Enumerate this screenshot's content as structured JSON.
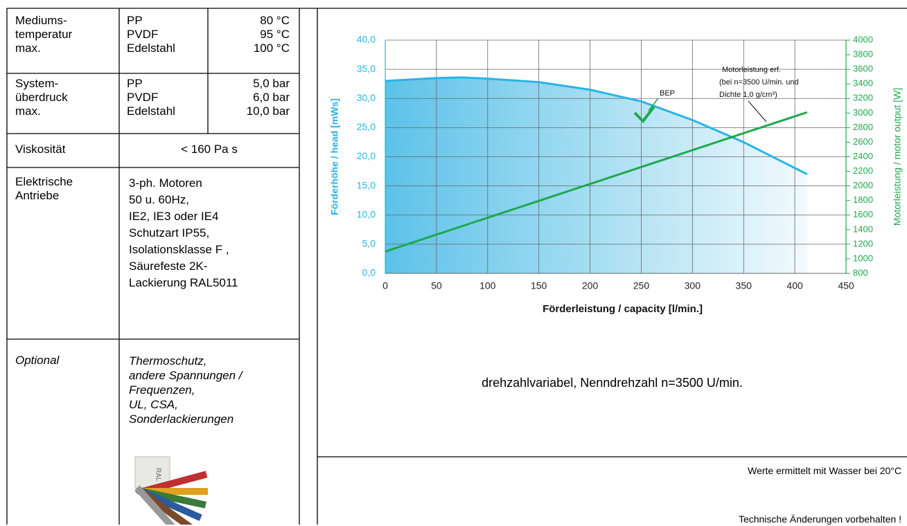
{
  "table": {
    "rows": [
      {
        "label": [
          "Mediums-",
          "temperatur",
          "max."
        ],
        "materials": [
          "PP",
          "PVDF",
          "Edelstahl"
        ],
        "values": [
          "80 °C",
          "95 °C",
          "100 °C"
        ]
      },
      {
        "label": [
          "System-",
          "überdruck",
          "max."
        ],
        "materials": [
          "PP",
          "PVDF",
          "Edelstahl"
        ],
        "values": [
          "5,0 bar",
          "6,0 bar",
          "10,0 bar"
        ]
      },
      {
        "label": [
          "Viskosität"
        ],
        "values": [
          "< 160 Pa s"
        ]
      },
      {
        "label": [
          "Elektrische",
          "Antriebe"
        ],
        "values": [
          "3-ph. Motoren",
          "50 u. 60Hz,",
          "IE2, IE3 oder IE4",
          "Schutzart IP55,",
          "Isolationsklasse F ,",
          "Säurefeste 2K-",
          "Lackierung RAL5011"
        ]
      },
      {
        "label": [
          "Optional"
        ],
        "values": [
          "Thermoschutz,",
          "andere Spannungen /",
          "Frequenzen,",
          "UL, CSA,",
          "Sonderlackierungen"
        ]
      }
    ]
  },
  "chart_data": {
    "type": "line",
    "xlabel": "Förderleistung / capacity  [l/min.]",
    "ylabel": "Förderhöhe / head  [mWs]",
    "y2label": "Motorleistung / motor output [W]",
    "x": [
      0,
      50,
      75,
      100,
      150,
      200,
      250,
      300,
      350,
      412
    ],
    "series": [
      {
        "name": "Förderhöhe / head",
        "color": "#29b4e5",
        "values": [
          33,
          33.5,
          33.6,
          33.4,
          32.8,
          31.5,
          29.5,
          26.3,
          22.5,
          17
        ]
      },
      {
        "name": "Motorleistung / motor output",
        "color": "#1ea84c",
        "axis": "y2",
        "values": [
          1100,
          1332,
          1448,
          1564,
          1795,
          2027,
          2259,
          2491,
          2723,
          3010
        ]
      }
    ],
    "xlim": [
      0,
      450
    ],
    "xticks": [
      0,
      50,
      100,
      150,
      200,
      250,
      300,
      350,
      400,
      450
    ],
    "ylim": [
      0,
      40
    ],
    "yticks": [
      {
        "value": 0,
        "label": "0,0"
      },
      {
        "value": 5,
        "label": "5,0"
      },
      {
        "value": 10,
        "label": "10,0"
      },
      {
        "value": 15,
        "label": "15,0"
      },
      {
        "value": 20,
        "label": "20,0"
      },
      {
        "value": 25,
        "label": "25,0"
      },
      {
        "value": 30,
        "label": "30,0"
      },
      {
        "value": 35,
        "label": "35,0"
      },
      {
        "value": 40,
        "label": "40,0"
      }
    ],
    "y2lim": [
      800,
      4000
    ],
    "y2ticks": [
      800,
      1000,
      1200,
      1400,
      1600,
      1800,
      2000,
      2200,
      2400,
      2600,
      2800,
      3000,
      3200,
      3400,
      3600,
      3800,
      4000
    ],
    "grid": true,
    "annotations": [
      "BEP",
      "Motorleistung erf.",
      "(bei n=3500 U/min. und",
      "Dichte 1,0 g/cm³)"
    ]
  },
  "notes": [
    "drehzahlvariabel,  Nenndrehzahl n=3500 U/min.",
    "Werte ermittelt mit Wasser bei 20°C",
    "Technische Änderungen vorbehalten !"
  ]
}
